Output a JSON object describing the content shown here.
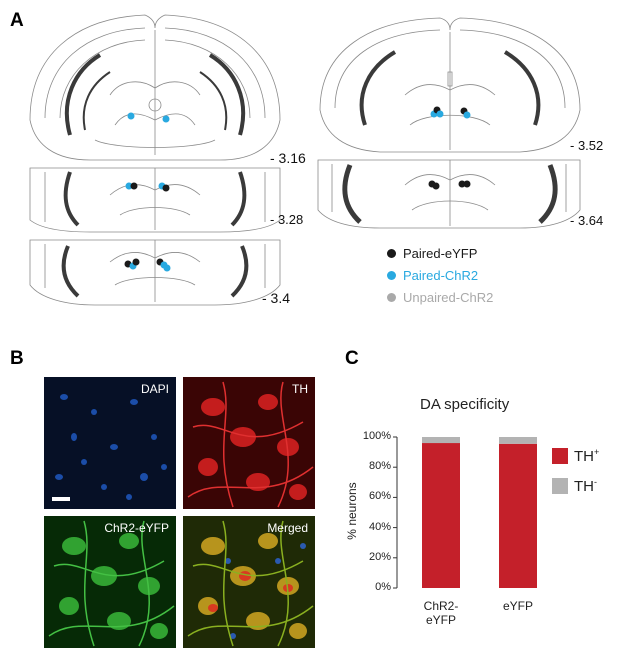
{
  "panels": {
    "a": {
      "letter": "A"
    },
    "b": {
      "letter": "B"
    },
    "c": {
      "letter": "C"
    }
  },
  "panel_a": {
    "sections": [
      {
        "label": "- 3.16"
      },
      {
        "label": "- 3.28"
      },
      {
        "label": "- 3.4"
      },
      {
        "label": "- 3.52"
      },
      {
        "label": "- 3.64"
      }
    ],
    "legend": [
      {
        "label": "Paired-eYFP",
        "color": "#1a1a1a"
      },
      {
        "label": "Paired-ChR2",
        "color": "#29a9e0"
      },
      {
        "label": "Unpaired-ChR2",
        "color": "#a9a9a9"
      }
    ],
    "colors": {
      "outline": "#8a8a8a",
      "tract": "#3a3a3a"
    }
  },
  "panel_b": {
    "images": [
      {
        "label": "DAPI",
        "color": "#1b3d8f"
      },
      {
        "label": "TH",
        "color": "#c41414"
      },
      {
        "label": "ChR2-eYFP",
        "color": "#2a9a2a"
      },
      {
        "label": "Merged",
        "color": "#6a8a20"
      }
    ]
  },
  "panel_c": {
    "chart_data": {
      "type": "bar",
      "stacked": true,
      "title": "DA specificity",
      "ylabel": "% neurons",
      "xlabel": "",
      "categories": [
        "ChR2-\neYFP",
        "eYFP"
      ],
      "series": [
        {
          "name": "TH+",
          "values": [
            96,
            95.5
          ],
          "color": "#c4202a"
        },
        {
          "name": "TH-",
          "values": [
            4,
            4.5
          ],
          "color": "#b3b3b3"
        }
      ],
      "ylim": [
        0,
        100
      ],
      "yticks": [
        "0%",
        "20%",
        "40%",
        "60%",
        "80%",
        "100%"
      ],
      "legend_position": "right",
      "grid": false
    }
  }
}
